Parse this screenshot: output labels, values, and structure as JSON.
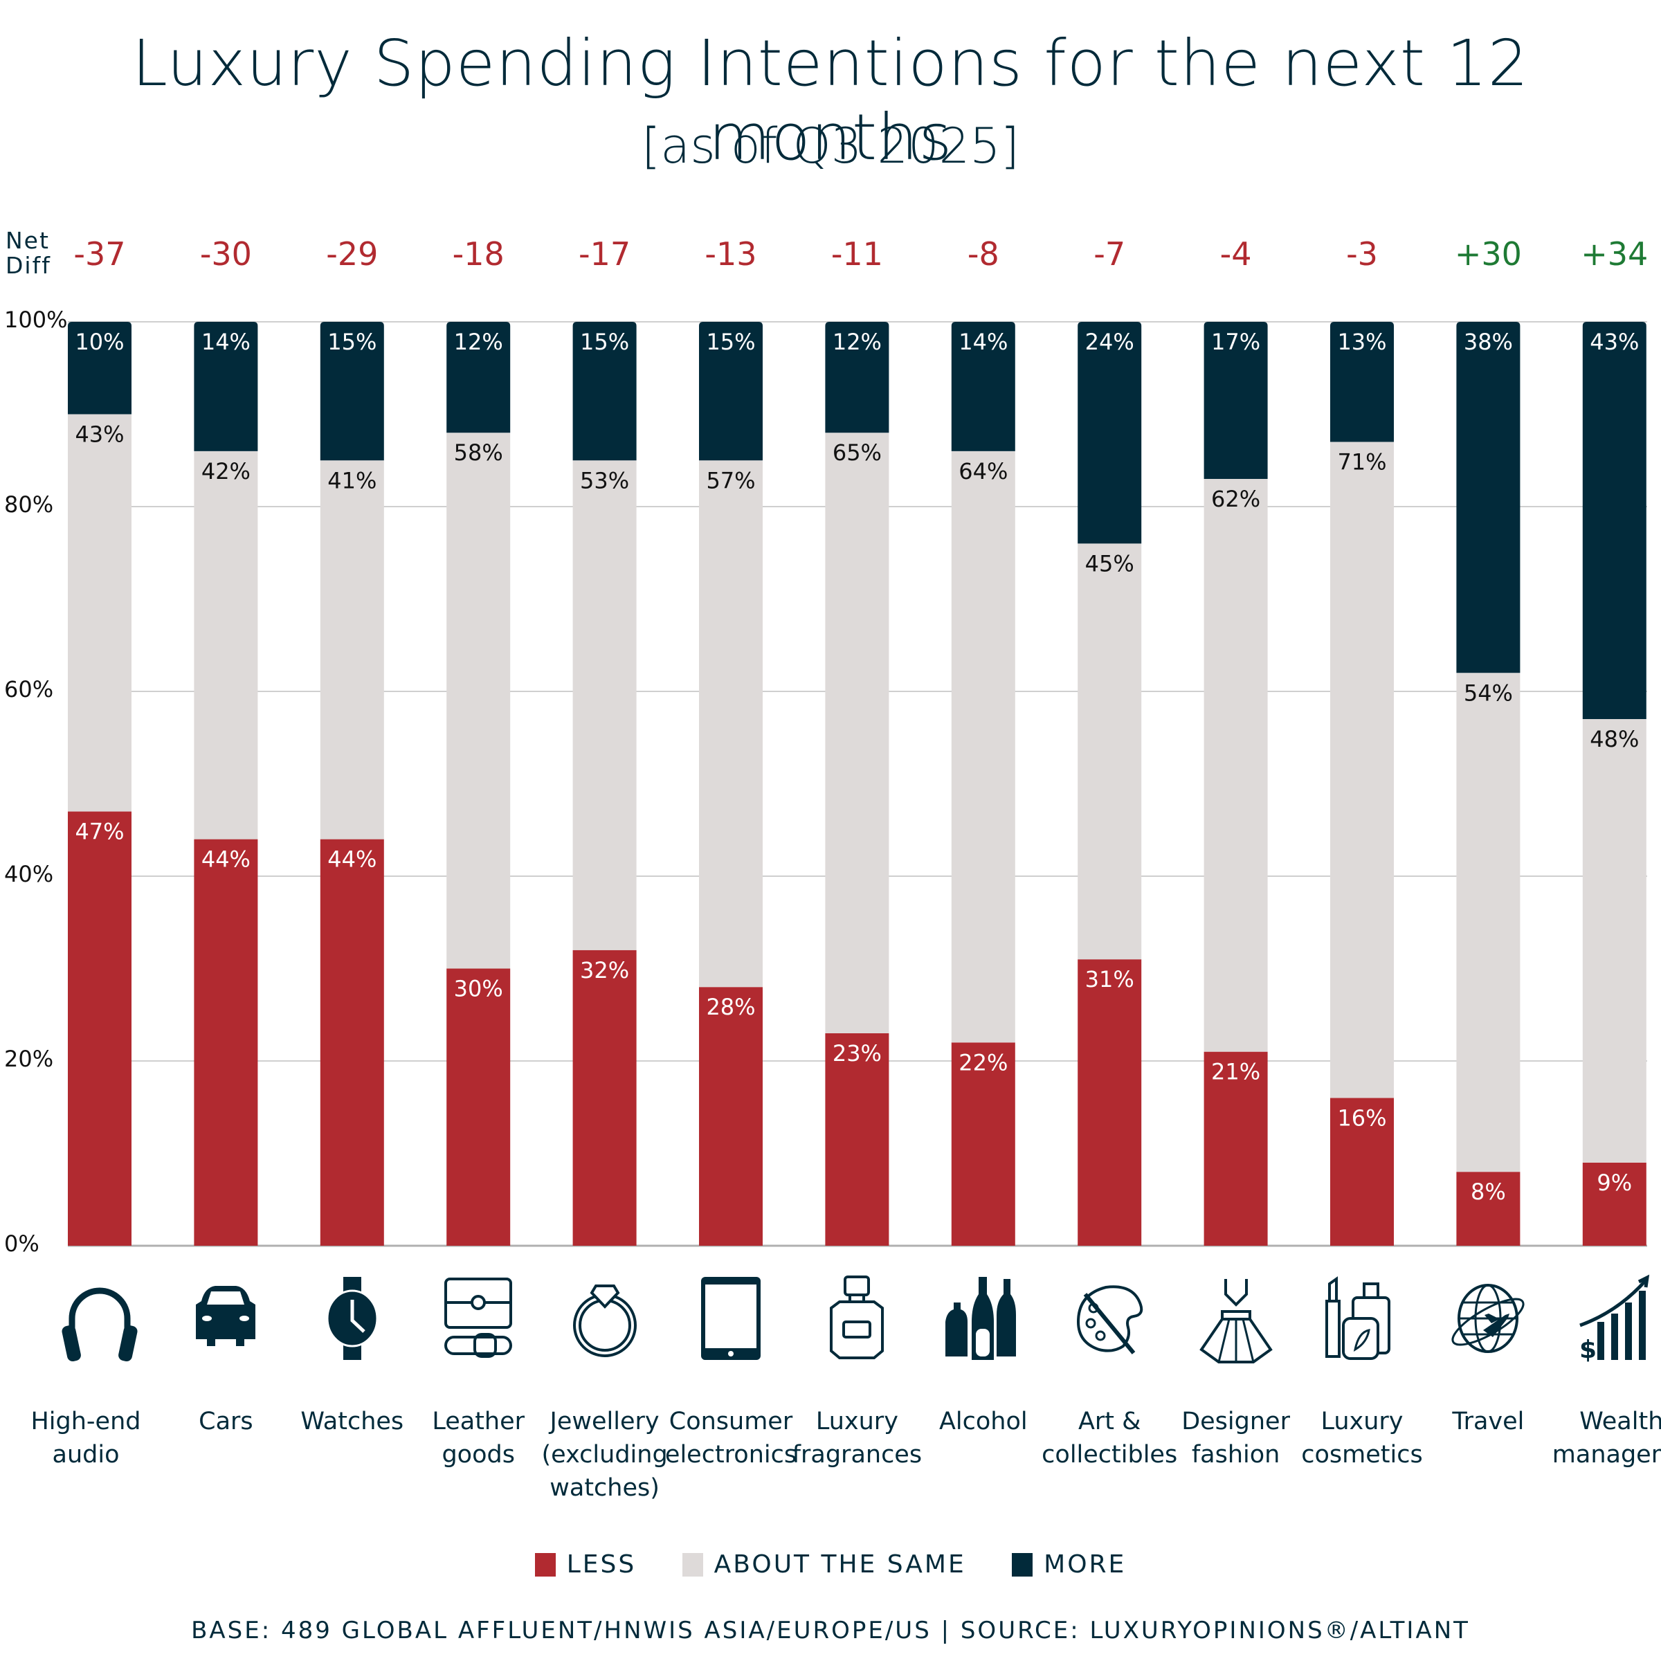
{
  "chart_data": {
    "type": "bar",
    "stacked": true,
    "title": "Luxury Spending Intentions for the next 12 months",
    "subtitle": "[as of Q3 2025]",
    "xlabel": "",
    "ylabel": "",
    "ylim": [
      0,
      100
    ],
    "yticks": [
      "0%",
      "20%",
      "40%",
      "60%",
      "80%",
      "100%"
    ],
    "grid": true,
    "legend_position": "bottom",
    "categories": [
      "High-end audio",
      "Cars",
      "Watches",
      "Leather goods",
      "Jewellery (excluding watches)",
      "Consumer electronics",
      "Luxury fragrances",
      "Alcohol",
      "Art & collectibles",
      "Designer fashion",
      "Luxury cosmetics",
      "Travel",
      "Wealth management"
    ],
    "category_lines": [
      [
        "High-end",
        "audio"
      ],
      [
        "Cars"
      ],
      [
        "Watches"
      ],
      [
        "Leather",
        "goods"
      ],
      [
        "Jewellery",
        "(excluding",
        "watches)"
      ],
      [
        "Consumer",
        "electronics"
      ],
      [
        "Luxury",
        "fragrances"
      ],
      [
        "Alcohol"
      ],
      [
        "Art &",
        "collectibles"
      ],
      [
        "Designer",
        "fashion"
      ],
      [
        "Luxury",
        "cosmetics"
      ],
      [
        "Travel"
      ],
      [
        "Wealth",
        "management"
      ]
    ],
    "icons": [
      "headphones-icon",
      "car-icon",
      "watch-icon",
      "handbag-belt-icon",
      "ring-icon",
      "tablet-icon",
      "perfume-icon",
      "bottles-icon",
      "palette-icon",
      "dress-icon",
      "cosmetics-icon",
      "globe-plane-icon",
      "wealth-growth-icon"
    ],
    "series": [
      {
        "name": "LESS",
        "color": "#b12a30",
        "values": [
          47,
          44,
          44,
          30,
          32,
          28,
          23,
          22,
          31,
          21,
          16,
          8,
          9
        ]
      },
      {
        "name": "ABOUT THE SAME",
        "color": "#dedad9",
        "values": [
          43,
          42,
          41,
          58,
          53,
          57,
          65,
          64,
          45,
          62,
          71,
          54,
          48
        ]
      },
      {
        "name": "MORE",
        "color": "#022a3a",
        "values": [
          10,
          14,
          15,
          12,
          15,
          15,
          12,
          14,
          24,
          17,
          13,
          38,
          43
        ]
      }
    ],
    "net_diff_label": [
      "Net",
      "Diff"
    ],
    "net_diff": [
      "-37",
      "-30",
      "-29",
      "-18",
      "-17",
      "-13",
      "-11",
      "-8",
      "-7",
      "-4",
      "-3",
      "+30",
      "+34"
    ],
    "net_diff_colors": {
      "negative": "#b12a30",
      "positive": "#1e7a34"
    }
  },
  "legend": {
    "items": [
      {
        "label": "LESS",
        "color": "#b12a30"
      },
      {
        "label": "ABOUT THE SAME",
        "color": "#dedad9"
      },
      {
        "label": "MORE",
        "color": "#022a3a"
      }
    ]
  },
  "footer": "BASE: 489 GLOBAL AFFLUENT/HNWIS ASIA/EUROPE/US | SOURCE: LUXURYOPINIONS®/ALTIANT"
}
